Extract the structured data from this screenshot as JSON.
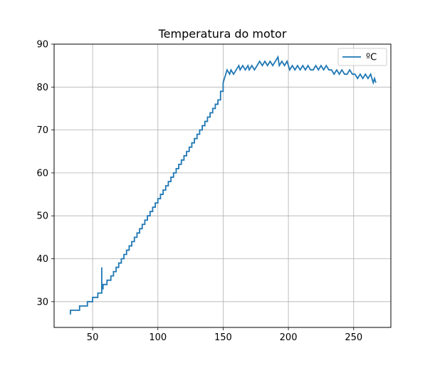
{
  "chart_data": {
    "type": "line",
    "title": "Temperatura do motor",
    "xlabel": "",
    "ylabel": "",
    "xlim": [
      20.5,
      278.5
    ],
    "ylim": [
      24,
      90
    ],
    "xticks": [
      50,
      100,
      150,
      200,
      250
    ],
    "yticks": [
      30,
      40,
      50,
      60,
      70,
      80,
      90
    ],
    "grid": true,
    "legend": {
      "position": "top-right"
    },
    "series": [
      {
        "name": "ºC",
        "color": "#1f77b4",
        "x": [
          33,
          33,
          34,
          34,
          40,
          40,
          46,
          46,
          50,
          50,
          54,
          54,
          57,
          57,
          57,
          57,
          58,
          58,
          61,
          61,
          64,
          64,
          66,
          66,
          68,
          68,
          70,
          70,
          72,
          72,
          74,
          74,
          76,
          76,
          78,
          78,
          80,
          80,
          82,
          82,
          84,
          84,
          86,
          86,
          88,
          88,
          90,
          90,
          92,
          92,
          94,
          94,
          96,
          96,
          98,
          98,
          100,
          100,
          102,
          102,
          104,
          104,
          106,
          106,
          108,
          108,
          110,
          110,
          112,
          112,
          114,
          114,
          116,
          116,
          118,
          118,
          120,
          120,
          122,
          122,
          124,
          124,
          126,
          126,
          128,
          128,
          130,
          130,
          132,
          132,
          134,
          134,
          136,
          136,
          138,
          138,
          140,
          140,
          142,
          142,
          144,
          144,
          146,
          146,
          148,
          148,
          150,
          150,
          152,
          153,
          155,
          156,
          158,
          160,
          162,
          163,
          165,
          167,
          169,
          170,
          172,
          174,
          176,
          178,
          180,
          182,
          184,
          186,
          188,
          190,
          192,
          193,
          195,
          197,
          199,
          201,
          203,
          205,
          207,
          209,
          211,
          213,
          215,
          217,
          219,
          221,
          223,
          225,
          227,
          229,
          231,
          233,
          235,
          237,
          239,
          241,
          243,
          245,
          247,
          249,
          251,
          253,
          255,
          257,
          259,
          261,
          263,
          264,
          265,
          266,
          267
        ],
        "y": [
          27,
          28,
          28,
          28,
          28,
          29,
          29,
          30,
          30,
          31,
          31,
          32,
          32,
          33,
          38,
          33,
          33,
          34,
          34,
          35,
          35,
          36,
          36,
          37,
          37,
          38,
          38,
          39,
          39,
          40,
          40,
          41,
          41,
          42,
          42,
          43,
          43,
          44,
          44,
          45,
          45,
          46,
          46,
          47,
          47,
          48,
          48,
          49,
          49,
          50,
          50,
          51,
          51,
          52,
          52,
          53,
          53,
          54,
          54,
          55,
          55,
          56,
          56,
          57,
          57,
          58,
          58,
          59,
          59,
          60,
          60,
          61,
          61,
          62,
          62,
          63,
          63,
          64,
          64,
          65,
          65,
          66,
          66,
          67,
          67,
          68,
          68,
          69,
          69,
          70,
          70,
          71,
          71,
          72,
          72,
          73,
          73,
          74,
          74,
          75,
          75,
          76,
          76,
          77,
          77,
          79,
          79,
          81,
          83,
          84,
          83,
          84,
          83,
          84,
          85,
          84,
          85,
          84,
          85,
          84,
          85,
          84,
          85,
          86,
          85,
          86,
          85,
          86,
          85,
          86,
          87,
          85,
          86,
          85,
          86,
          84,
          85,
          84,
          85,
          84,
          85,
          84,
          85,
          84,
          84,
          85,
          84,
          85,
          84,
          85,
          84,
          84,
          83,
          84,
          83,
          84,
          83,
          83,
          84,
          83,
          83,
          82,
          83,
          82,
          83,
          82,
          83,
          82,
          81,
          82,
          81
        ]
      }
    ]
  }
}
